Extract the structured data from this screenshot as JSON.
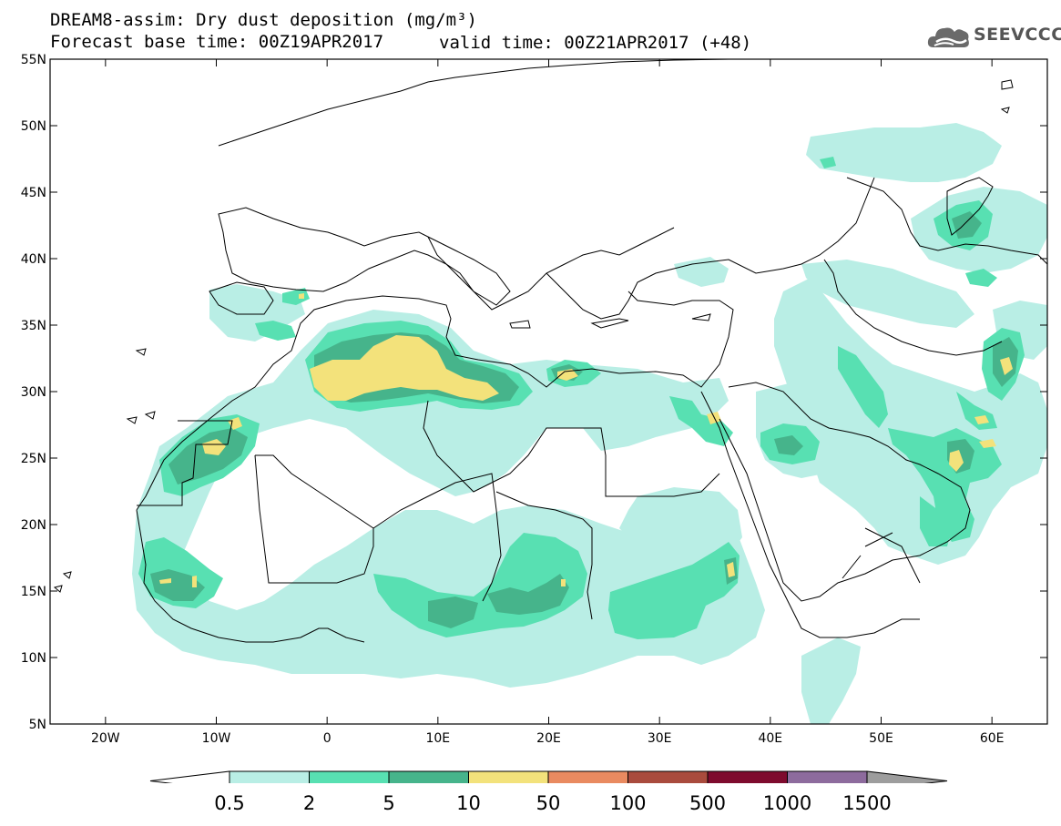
{
  "title": {
    "line1": "DREAM8-assim: Dry dust deposition (mg/m³)",
    "line2": "Forecast base time: 00Z19APR2017",
    "valid": "valid time: 00Z21APR2017 (+48)"
  },
  "logo": {
    "text": "SEEVCCC",
    "icon": "cloud-icon"
  },
  "axes": {
    "lat_labels": [
      "55N",
      "50N",
      "45N",
      "40N",
      "35N",
      "30N",
      "25N",
      "20N",
      "15N",
      "10N",
      "5N"
    ],
    "lon_labels": [
      "20W",
      "10W",
      "0",
      "10E",
      "20E",
      "30E",
      "40E",
      "50E",
      "60E"
    ],
    "lon_range": [
      -25,
      65
    ],
    "lat_range": [
      5,
      55
    ]
  },
  "legend": {
    "labels": [
      "0.5",
      "2",
      "5",
      "10",
      "50",
      "100",
      "500",
      "1000",
      "1500"
    ],
    "colors": [
      "#b9eee5",
      "#58e0b2",
      "#46b48b",
      "#f3e27b",
      "#e98a60",
      "#a94b3d",
      "#7e0b2e",
      "#8d6b9d"
    ],
    "under_color": "#ffffff",
    "over_color": "#9d9d9d"
  }
}
